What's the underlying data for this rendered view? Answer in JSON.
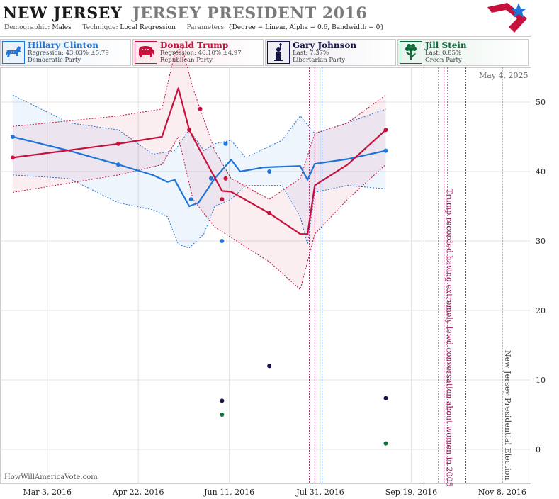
{
  "header": {
    "state": "NEW JERSEY",
    "race": "JERSEY PRESIDENT 2016",
    "demographic_label": "Demographic:",
    "demographic_value": "Males",
    "technique_label": "Technique:",
    "technique_value": "Local Regression",
    "parameters_label": "Parameters:",
    "parameters_value": "{Degree = Linear, Alpha = 0.6, Bandwidth = 0}"
  },
  "legend": [
    {
      "name": "Hillary Clinton",
      "stat": "Regression: 43.03% ±5.79",
      "party": "Democratic Party",
      "color": "#1e74d8",
      "bg": "#eaf2fc",
      "icon": "donkey-icon"
    },
    {
      "name": "Donald Trump",
      "stat": "Regression: 46.10% ±4.97",
      "party": "Republican Party",
      "color": "#c8103c",
      "bg": "#fcebee",
      "icon": "elephant-icon"
    },
    {
      "name": "Gary Johnson",
      "stat": "Last: 7.37%",
      "party": "Libertarian Party",
      "color": "#14134a",
      "bg": "#eeeef3",
      "icon": "liberty-icon"
    },
    {
      "name": "Jill Stein",
      "stat": "Last: 0.85%",
      "party": "Green Party",
      "color": "#0e6b3a",
      "bg": "#eaf4ee",
      "icon": "flower-icon"
    }
  ],
  "date_stamp": "May 4, 2025",
  "footer": "HowWillAmericaVote.com",
  "chart_data": {
    "type": "line",
    "x_ticks": [
      "Mar 3, 2016",
      "Apr 22, 2016",
      "Jun 11, 2016",
      "Jul 31, 2016",
      "Sep 19, 2016",
      "Nov 8, 2016"
    ],
    "y_ticks": [
      0,
      10,
      20,
      30,
      40,
      50
    ],
    "ylim": [
      -5,
      55
    ],
    "xlim": [
      "2016-02-06",
      "2016-11-24"
    ],
    "grid": true,
    "series": [
      {
        "name": "Hillary Clinton",
        "color": "#1e74d8",
        "points": [
          [
            "2016-02-13",
            45
          ],
          [
            "2016-04-11",
            41
          ],
          [
            "2016-05-21",
            36
          ],
          [
            "2016-06-01",
            39
          ],
          [
            "2016-06-07",
            30
          ],
          [
            "2016-06-09",
            44
          ],
          [
            "2016-07-03",
            40
          ],
          [
            "2016-09-05",
            43
          ]
        ],
        "fit": [
          [
            "2016-02-13",
            45
          ],
          [
            "2016-03-15",
            43
          ],
          [
            "2016-04-11",
            41
          ],
          [
            "2016-04-30",
            39.5
          ],
          [
            "2016-05-08",
            38.5
          ],
          [
            "2016-05-12",
            38.8
          ],
          [
            "2016-05-20",
            35
          ],
          [
            "2016-05-25",
            35.5
          ],
          [
            "2016-06-03",
            39
          ],
          [
            "2016-06-12",
            41.7
          ],
          [
            "2016-06-17",
            40
          ],
          [
            "2016-06-30",
            40.6
          ],
          [
            "2016-07-20",
            40.8
          ],
          [
            "2016-07-24",
            38.8
          ],
          [
            "2016-07-28",
            41.1
          ],
          [
            "2016-08-15",
            41.8
          ],
          [
            "2016-09-05",
            43
          ]
        ],
        "upper": [
          [
            "2016-02-13",
            51
          ],
          [
            "2016-03-15",
            47
          ],
          [
            "2016-04-11",
            46
          ],
          [
            "2016-04-30",
            42.5
          ],
          [
            "2016-05-12",
            43
          ],
          [
            "2016-05-20",
            46
          ],
          [
            "2016-05-28",
            43
          ],
          [
            "2016-06-03",
            44
          ],
          [
            "2016-06-12",
            44.5
          ],
          [
            "2016-06-20",
            42
          ],
          [
            "2016-07-10",
            44.5
          ],
          [
            "2016-07-20",
            48
          ],
          [
            "2016-07-28",
            45.5
          ],
          [
            "2016-08-15",
            47
          ],
          [
            "2016-09-05",
            49
          ]
        ],
        "lower": [
          [
            "2016-02-13",
            39.5
          ],
          [
            "2016-03-15",
            39
          ],
          [
            "2016-04-11",
            35.5
          ],
          [
            "2016-04-30",
            34.5
          ],
          [
            "2016-05-08",
            33.5
          ],
          [
            "2016-05-14",
            29.5
          ],
          [
            "2016-05-20",
            29
          ],
          [
            "2016-05-28",
            31
          ],
          [
            "2016-06-03",
            35
          ],
          [
            "2016-06-12",
            36
          ],
          [
            "2016-06-20",
            38
          ],
          [
            "2016-07-10",
            38
          ],
          [
            "2016-07-20",
            33.5
          ],
          [
            "2016-07-24",
            29.5
          ],
          [
            "2016-07-28",
            37
          ],
          [
            "2016-08-15",
            38
          ],
          [
            "2016-09-05",
            37.5
          ]
        ]
      },
      {
        "name": "Donald Trump",
        "color": "#c8103c",
        "points": [
          [
            "2016-02-13",
            42
          ],
          [
            "2016-04-11",
            44
          ],
          [
            "2016-05-20",
            46
          ],
          [
            "2016-05-26",
            49
          ],
          [
            "2016-06-07",
            36
          ],
          [
            "2016-06-09",
            39
          ],
          [
            "2016-07-03",
            34
          ],
          [
            "2016-09-05",
            46
          ]
        ],
        "fit": [
          [
            "2016-02-13",
            42
          ],
          [
            "2016-04-11",
            44
          ],
          [
            "2016-05-05",
            45
          ],
          [
            "2016-05-14",
            52
          ],
          [
            "2016-05-20",
            46
          ],
          [
            "2016-05-26",
            43
          ],
          [
            "2016-06-07",
            37.2
          ],
          [
            "2016-06-12",
            37.1
          ],
          [
            "2016-07-03",
            34
          ],
          [
            "2016-07-20",
            31
          ],
          [
            "2016-07-24",
            31
          ],
          [
            "2016-07-28",
            38
          ],
          [
            "2016-08-15",
            41
          ],
          [
            "2016-09-05",
            46
          ]
        ],
        "upper": [
          [
            "2016-02-13",
            46.5
          ],
          [
            "2016-04-11",
            48
          ],
          [
            "2016-05-05",
            49
          ],
          [
            "2016-05-12",
            57
          ],
          [
            "2016-05-16",
            58
          ],
          [
            "2016-05-22",
            52
          ],
          [
            "2016-06-03",
            43
          ],
          [
            "2016-06-12",
            39
          ],
          [
            "2016-07-03",
            36
          ],
          [
            "2016-07-20",
            39
          ],
          [
            "2016-07-28",
            45.5
          ],
          [
            "2016-08-15",
            47
          ],
          [
            "2016-09-05",
            51
          ]
        ],
        "lower": [
          [
            "2016-02-13",
            37
          ],
          [
            "2016-04-11",
            39.5
          ],
          [
            "2016-05-05",
            41
          ],
          [
            "2016-05-14",
            45
          ],
          [
            "2016-05-22",
            36
          ],
          [
            "2016-06-03",
            32
          ],
          [
            "2016-06-12",
            30.5
          ],
          [
            "2016-07-03",
            27
          ],
          [
            "2016-07-20",
            23
          ],
          [
            "2016-07-28",
            31
          ],
          [
            "2016-08-15",
            36
          ],
          [
            "2016-09-05",
            41
          ]
        ]
      },
      {
        "name": "Gary Johnson",
        "color": "#14134a",
        "points": [
          [
            "2016-06-07",
            7
          ],
          [
            "2016-07-03",
            12
          ],
          [
            "2016-09-05",
            7.37
          ]
        ]
      },
      {
        "name": "Jill Stein",
        "color": "#0e6b3a",
        "points": [
          [
            "2016-06-07",
            5
          ],
          [
            "2016-09-05",
            0.85
          ]
        ]
      }
    ],
    "event_lines": [
      {
        "date": "2016-07-25",
        "color": "#a0105c",
        "dash": true
      },
      {
        "date": "2016-07-28",
        "color": "#a0105c",
        "dash": true
      },
      {
        "date": "2016-08-01",
        "color": "#1e74d8",
        "dash": true
      },
      {
        "date": "2016-09-26",
        "color": "#555555",
        "dash": true
      },
      {
        "date": "2016-10-04",
        "color": "#555555",
        "dash": true
      },
      {
        "date": "2016-10-07",
        "color": "#a0105c",
        "dash": true
      },
      {
        "date": "2016-10-09",
        "color": "#555555",
        "dash": true
      },
      {
        "date": "2016-10-19",
        "color": "#555555",
        "dash": true
      },
      {
        "date": "2016-11-08",
        "color": "#555555",
        "dash": true
      }
    ],
    "annotations": [
      {
        "text": "Trump recorded having extremely lewd conversation about women in 2005",
        "date": "2016-10-07",
        "color": "#a0105c"
      },
      {
        "text": "New Jersey Presidential Election",
        "date": "2016-11-08",
        "color": "#444444"
      }
    ]
  }
}
